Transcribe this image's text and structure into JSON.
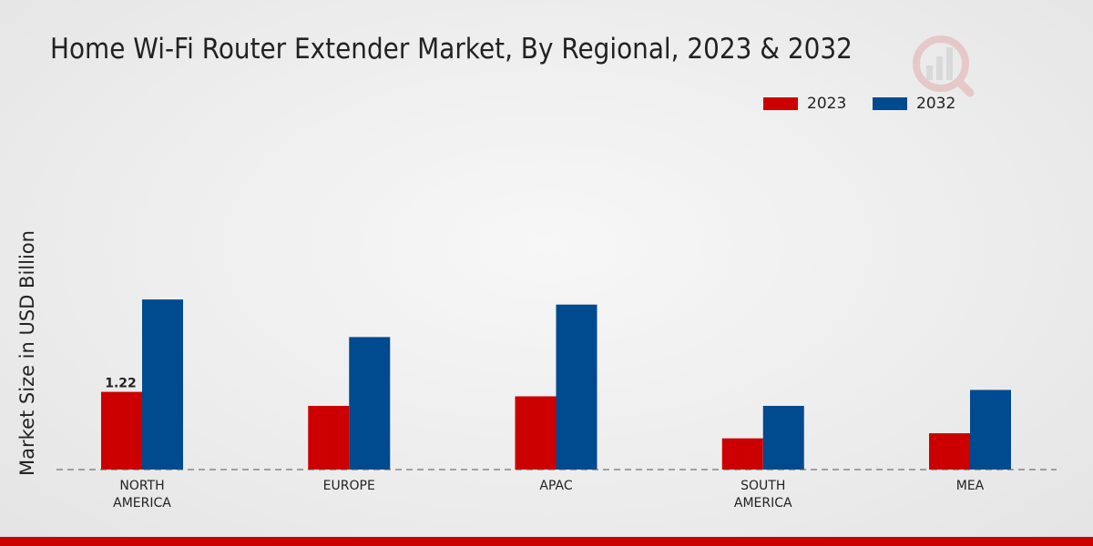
{
  "chart_data": {
    "type": "bar",
    "title": "Home Wi-Fi Router Extender Market, By Regional, 2023 & 2032",
    "ylabel": "Market Size in USD Billion",
    "xlabel": "",
    "categories": [
      "NORTH AMERICA",
      "EUROPE",
      "APAC",
      "SOUTH AMERICA",
      "MEA"
    ],
    "category_lines": [
      [
        "NORTH",
        "AMERICA"
      ],
      [
        "EUROPE"
      ],
      [
        "APAC"
      ],
      [
        "SOUTH",
        "AMERICA"
      ],
      [
        "MEA"
      ]
    ],
    "series": [
      {
        "name": "2023",
        "color": "#cc0000",
        "values": [
          1.22,
          1.0,
          1.15,
          0.49,
          0.57
        ]
      },
      {
        "name": "2032",
        "color": "#004a8f",
        "values": [
          2.67,
          2.08,
          2.59,
          1.0,
          1.25
        ]
      }
    ],
    "data_labels": [
      {
        "series": 0,
        "index": 0,
        "text": "1.22"
      }
    ],
    "ylim": [
      0,
      4.5
    ],
    "legend_position": "top-right",
    "grid": false
  },
  "footer_color": "#cc0000"
}
